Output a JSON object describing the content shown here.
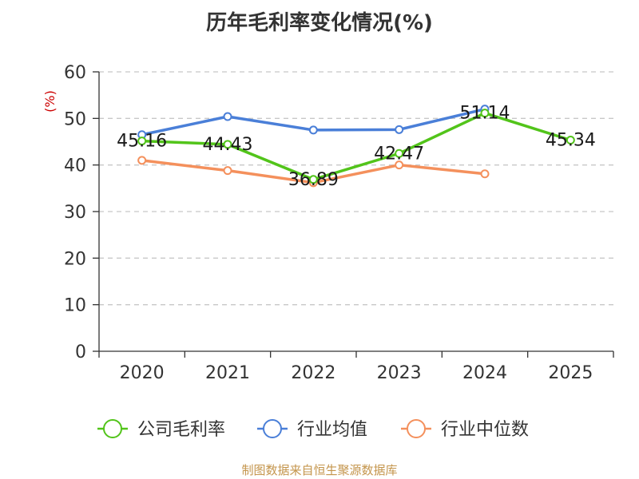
{
  "chart_data": {
    "type": "line",
    "title": "历年毛利率变化情况(%)",
    "ylabel": "(%)",
    "xlabel": "",
    "categories": [
      "2020",
      "2021",
      "2022",
      "2023",
      "2024",
      "2025"
    ],
    "ylim": [
      0,
      60
    ],
    "yticks": [
      0,
      10,
      20,
      30,
      40,
      50,
      60
    ],
    "grid": true,
    "legend_position": "bottom",
    "series": [
      {
        "name": "公司毛利率",
        "color": "#52c41a",
        "values": [
          45.16,
          44.43,
          36.89,
          42.47,
          51.14,
          45.34
        ],
        "labels": [
          "45.16",
          "44.43",
          "36.89",
          "42.47",
          "51.14",
          "45.34"
        ]
      },
      {
        "name": "行业均值",
        "color": "#4a7fd8",
        "values": [
          46.5,
          50.4,
          47.5,
          47.6,
          52.0,
          null
        ]
      },
      {
        "name": "行业中位数",
        "color": "#f4905c",
        "values": [
          41.0,
          38.8,
          36.2,
          40.0,
          38.1,
          null
        ]
      }
    ]
  },
  "source_note": "制图数据来自恒生聚源数据库"
}
